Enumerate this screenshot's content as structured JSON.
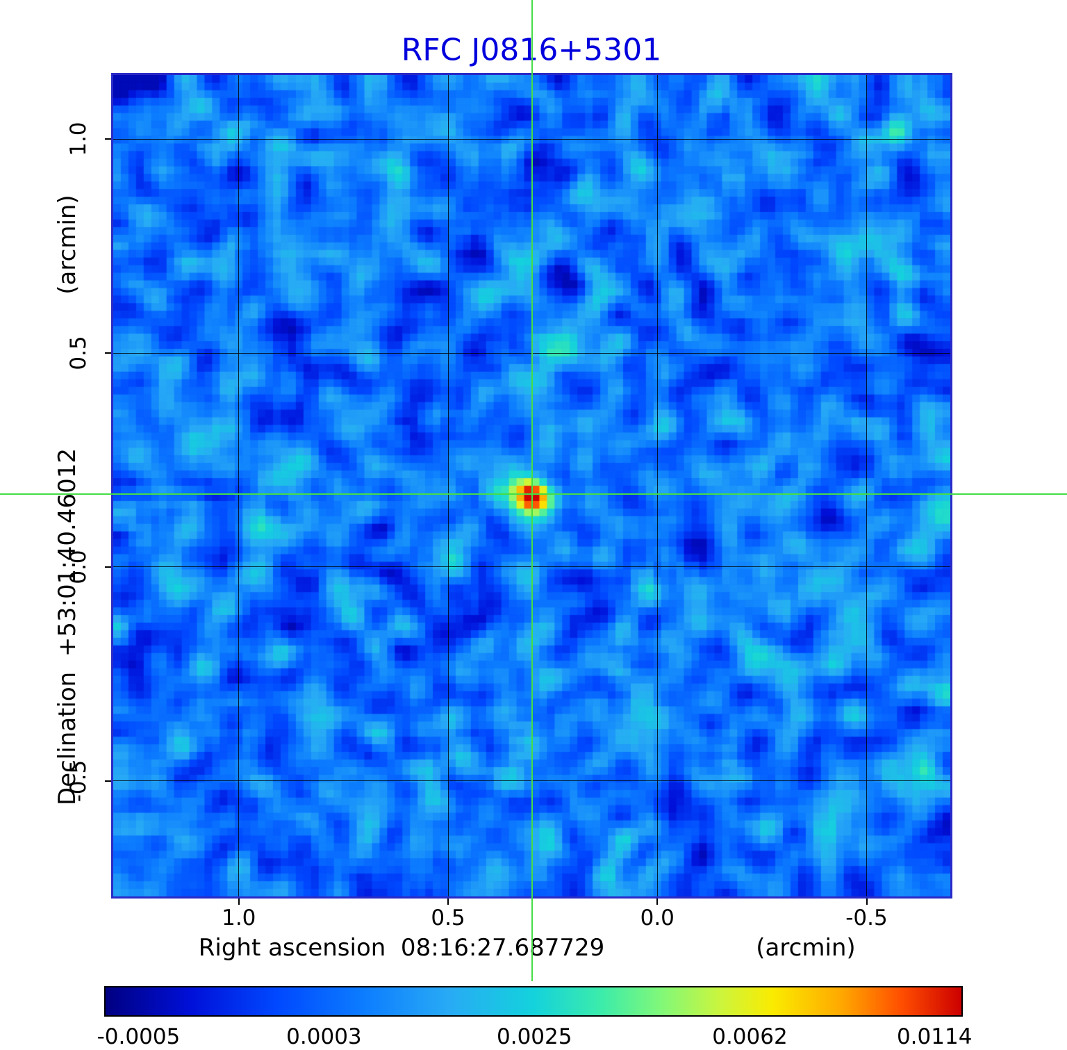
{
  "title": "RFC J0816+5301",
  "axes": {
    "y_label_main": "Declination  +53:01:40.46012",
    "y_label_unit": "(arcmin)",
    "x_label_main": "Right ascension  08:16:27.687729",
    "x_label_unit": "(arcmin)"
  },
  "colors": {
    "title": "#0000dd",
    "frame": "#2a2ac8",
    "grid": "#000000",
    "crosshair": "#46dd46",
    "text": "#000000"
  },
  "chart_data": {
    "type": "heatmap",
    "title": "RFC J0816+5301",
    "xlabel": "Right ascension 08:16:27.687729 (arcmin)",
    "ylabel": "Declination +53:01:40.46012 (arcmin)",
    "x_range": [
      1.3,
      -0.7
    ],
    "y_range_bottom_top": [
      -0.77,
      1.15
    ],
    "x_ticks": [
      1.0,
      0.5,
      0.0,
      -0.5
    ],
    "y_ticks": [
      1.0,
      0.5,
      0.0,
      -0.5
    ],
    "x_tick_labels": [
      "1.0",
      "0.5",
      "0.0",
      "-0.5"
    ],
    "y_tick_labels": [
      "1.0",
      "0.5",
      "0.0",
      "-0.5"
    ],
    "grid": true,
    "source": {
      "x_arcmin": 0.3,
      "y_arcmin": 0.17,
      "peak_value": 0.0114
    },
    "background_level": 0.0003,
    "value_range": [
      -0.0005,
      0.0114
    ],
    "colorbar_ticks": [
      "-0.0005",
      "0.0003",
      "0.0025",
      "0.0062",
      "0.0114"
    ],
    "colorbar_tick_positions": [
      0.04,
      0.256,
      0.501,
      0.752,
      0.967
    ],
    "colormap_stops": [
      [
        0.0,
        "#000082"
      ],
      [
        0.1,
        "#0010d8"
      ],
      [
        0.2,
        "#0048ff"
      ],
      [
        0.3,
        "#0c7cff"
      ],
      [
        0.4,
        "#28aaf5"
      ],
      [
        0.5,
        "#14d2dc"
      ],
      [
        0.58,
        "#3cecaa"
      ],
      [
        0.65,
        "#82f878"
      ],
      [
        0.72,
        "#cdf53c"
      ],
      [
        0.78,
        "#faeb00"
      ],
      [
        0.86,
        "#ffa800"
      ],
      [
        0.93,
        "#ff4e00"
      ],
      [
        1.0,
        "#cc0000"
      ]
    ],
    "noise": {
      "seed": 816,
      "cells_x": 110,
      "cells_y": 108,
      "base_fraction": 0.29,
      "sd_fraction": 0.08,
      "min_fraction": 0.06,
      "max_fraction": 0.58,
      "source_sigma_x_cells": 2.2,
      "source_sigma_y_cells": 1.9
    }
  }
}
